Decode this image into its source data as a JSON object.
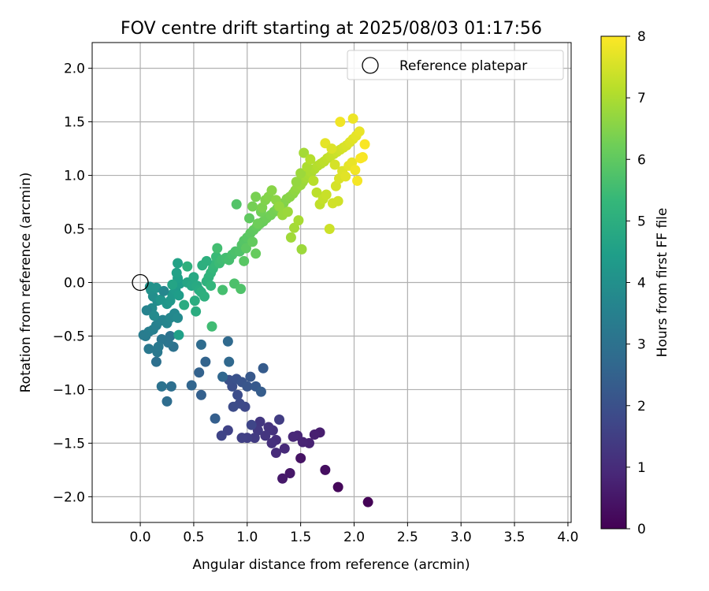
{
  "chart_data": {
    "type": "scatter",
    "title": "FOV centre drift starting at 2025/08/03 01:17:56",
    "xlabel": "Angular distance from reference (arcmin)",
    "ylabel": "Rotation from reference (arcmin)",
    "xlim": [
      -0.45,
      4.03
    ],
    "ylim": [
      -2.24,
      2.24
    ],
    "x_ticks": [
      0.0,
      0.5,
      1.0,
      1.5,
      2.0,
      2.5,
      3.0,
      3.5,
      4.0
    ],
    "x_tick_labels": [
      "0.0",
      "0.5",
      "1.0",
      "1.5",
      "2.0",
      "2.5",
      "3.0",
      "3.5",
      "4.0"
    ],
    "y_ticks": [
      -2.0,
      -1.5,
      -1.0,
      -0.5,
      0.0,
      0.5,
      1.0,
      1.5,
      2.0
    ],
    "y_tick_labels": [
      "−2.0",
      "−1.5",
      "−1.0",
      "−0.5",
      "0.0",
      "0.5",
      "1.0",
      "1.5",
      "2.0"
    ],
    "grid": true,
    "legend": {
      "position": "top-right",
      "entries": [
        "Reference platepar"
      ]
    },
    "reference_point": {
      "x": 0.0,
      "y": 0.0
    },
    "colorbar": {
      "label": "Hours from first FF file",
      "range": [
        0,
        8
      ],
      "ticks": [
        0,
        1,
        2,
        3,
        4,
        5,
        6,
        7,
        8
      ],
      "tick_labels": [
        "0",
        "1",
        "2",
        "3",
        "4",
        "5",
        "6",
        "7",
        "8"
      ],
      "colormap": [
        "#440154",
        "#482878",
        "#3e4989",
        "#31688e",
        "#26828e",
        "#1f9e89",
        "#35b779",
        "#6ece58",
        "#b5de2b",
        "#fde725"
      ]
    },
    "points": [
      [
        2.13,
        -2.05,
        0.05
      ],
      [
        1.85,
        -1.91,
        0.15
      ],
      [
        1.73,
        -1.75,
        0.3
      ],
      [
        1.5,
        -1.64,
        0.4
      ],
      [
        1.4,
        -1.78,
        0.5
      ],
      [
        1.33,
        -1.83,
        0.55
      ],
      [
        1.68,
        -1.4,
        0.65
      ],
      [
        1.63,
        -1.42,
        0.7
      ],
      [
        1.58,
        -1.5,
        0.75
      ],
      [
        1.52,
        -1.49,
        0.8
      ],
      [
        1.47,
        -1.43,
        0.85
      ],
      [
        1.43,
        -1.44,
        0.9
      ],
      [
        1.35,
        -1.55,
        0.95
      ],
      [
        1.27,
        -1.59,
        1.0
      ],
      [
        1.27,
        -1.47,
        1.05
      ],
      [
        1.23,
        -1.5,
        1.1
      ],
      [
        1.24,
        -1.38,
        1.15
      ],
      [
        1.2,
        -1.35,
        1.2
      ],
      [
        1.17,
        -1.43,
        1.25
      ],
      [
        1.12,
        -1.3,
        1.3
      ],
      [
        1.1,
        -1.38,
        1.35
      ],
      [
        1.07,
        -1.45,
        1.4
      ],
      [
        1.3,
        -1.28,
        1.45
      ],
      [
        1.0,
        -1.45,
        1.5
      ],
      [
        0.95,
        -1.45,
        1.55
      ],
      [
        0.82,
        -1.38,
        1.6
      ],
      [
        0.76,
        -1.43,
        1.65
      ],
      [
        1.04,
        -1.33,
        1.7
      ],
      [
        0.98,
        -1.16,
        1.75
      ],
      [
        0.93,
        -1.13,
        1.8
      ],
      [
        0.87,
        -1.16,
        1.85
      ],
      [
        0.91,
        -1.05,
        1.9
      ],
      [
        0.86,
        -0.97,
        1.95
      ],
      [
        0.83,
        -0.91,
        2.0
      ],
      [
        0.9,
        -0.9,
        2.05
      ],
      [
        0.95,
        -0.93,
        2.1
      ],
      [
        1.0,
        -0.97,
        2.15
      ],
      [
        1.03,
        -0.88,
        2.2
      ],
      [
        1.08,
        -0.97,
        2.25
      ],
      [
        1.15,
        -0.8,
        2.3
      ],
      [
        1.13,
        -1.02,
        2.35
      ],
      [
        0.7,
        -1.27,
        2.4
      ],
      [
        0.57,
        -1.05,
        2.45
      ],
      [
        0.55,
        -0.84,
        2.5
      ],
      [
        0.61,
        -0.74,
        2.55
      ],
      [
        0.48,
        -0.96,
        2.6
      ],
      [
        0.77,
        -0.88,
        2.65
      ],
      [
        0.83,
        -0.74,
        2.7
      ],
      [
        0.82,
        -0.55,
        2.75
      ],
      [
        0.57,
        -0.58,
        2.8
      ],
      [
        0.25,
        -1.11,
        2.85
      ],
      [
        0.29,
        -0.97,
        2.9
      ],
      [
        0.15,
        -0.74,
        2.95
      ],
      [
        0.31,
        -0.6,
        3.0
      ],
      [
        0.28,
        -0.5,
        3.05
      ],
      [
        0.26,
        -0.56,
        3.1
      ],
      [
        0.2,
        -0.53,
        3.15
      ],
      [
        0.16,
        -0.65,
        3.2
      ],
      [
        0.17,
        -0.6,
        3.25
      ],
      [
        0.05,
        -0.5,
        3.3
      ],
      [
        0.03,
        -0.49,
        3.35
      ],
      [
        0.08,
        -0.46,
        3.4
      ],
      [
        0.12,
        -0.44,
        3.45
      ],
      [
        0.15,
        -0.4,
        3.5
      ],
      [
        0.18,
        -0.36,
        3.55
      ],
      [
        0.21,
        -0.35,
        3.6
      ],
      [
        0.25,
        -0.38,
        3.65
      ],
      [
        0.28,
        -0.33,
        3.7
      ],
      [
        0.32,
        -0.29,
        3.75
      ],
      [
        0.35,
        -0.33,
        3.8
      ],
      [
        0.11,
        -0.24,
        3.85
      ],
      [
        0.16,
        -0.17,
        3.9
      ],
      [
        0.12,
        -0.13,
        3.95
      ],
      [
        0.1,
        -0.07,
        4.0
      ],
      [
        0.09,
        -0.04,
        4.05
      ],
      [
        0.15,
        -0.05,
        4.1
      ],
      [
        0.19,
        -0.16,
        4.15
      ],
      [
        0.25,
        -0.2,
        4.2
      ],
      [
        0.28,
        -0.17,
        4.25
      ],
      [
        0.3,
        -0.11,
        4.3
      ],
      [
        0.33,
        -0.07,
        4.35
      ],
      [
        0.36,
        -0.12,
        4.4
      ],
      [
        0.37,
        -0.01,
        4.45
      ],
      [
        0.35,
        0.04,
        4.5
      ],
      [
        0.34,
        0.09,
        4.55
      ],
      [
        0.35,
        0.18,
        4.6
      ],
      [
        0.3,
        -0.02,
        4.65
      ],
      [
        0.44,
        0.0,
        4.7
      ],
      [
        0.48,
        -0.03,
        4.75
      ],
      [
        0.5,
        0.05,
        4.8
      ],
      [
        0.53,
        -0.03,
        4.85
      ],
      [
        0.55,
        -0.07,
        4.9
      ],
      [
        0.51,
        -0.17,
        4.95
      ],
      [
        0.57,
        -0.09,
        5.0
      ],
      [
        0.6,
        -0.13,
        5.05
      ],
      [
        0.62,
        0.01,
        5.1
      ],
      [
        0.64,
        0.05,
        5.15
      ],
      [
        0.66,
        0.09,
        5.2
      ],
      [
        0.66,
        -0.03,
        5.25
      ],
      [
        0.68,
        0.13,
        5.3
      ],
      [
        0.7,
        0.17,
        5.35
      ],
      [
        0.71,
        0.24,
        5.4
      ],
      [
        0.74,
        0.18,
        5.45
      ],
      [
        0.76,
        0.21,
        5.5
      ],
      [
        0.8,
        0.23,
        5.55
      ],
      [
        0.83,
        0.21,
        5.6
      ],
      [
        0.86,
        0.26,
        5.65
      ],
      [
        0.89,
        0.29,
        5.7
      ],
      [
        0.93,
        0.29,
        5.75
      ],
      [
        0.95,
        0.35,
        5.8
      ],
      [
        0.97,
        0.39,
        5.85
      ],
      [
        1.0,
        0.42,
        5.9
      ],
      [
        1.03,
        0.46,
        5.95
      ],
      [
        1.06,
        0.49,
        6.0
      ],
      [
        1.09,
        0.52,
        6.05
      ],
      [
        1.12,
        0.55,
        6.1
      ],
      [
        1.15,
        0.57,
        6.15
      ],
      [
        1.18,
        0.6,
        6.2
      ],
      [
        1.22,
        0.63,
        6.25
      ],
      [
        1.25,
        0.66,
        6.3
      ],
      [
        1.28,
        0.69,
        6.35
      ],
      [
        1.31,
        0.72,
        6.4
      ],
      [
        1.34,
        0.74,
        6.45
      ],
      [
        1.37,
        0.78,
        6.5
      ],
      [
        1.4,
        0.8,
        6.55
      ],
      [
        1.43,
        0.83,
        6.6
      ],
      [
        1.45,
        0.86,
        6.65
      ],
      [
        1.47,
        0.89,
        6.7
      ],
      [
        1.5,
        0.91,
        6.75
      ],
      [
        1.52,
        0.94,
        6.8
      ],
      [
        1.54,
        0.97,
        6.85
      ],
      [
        1.56,
        0.98,
        6.9
      ],
      [
        1.58,
        1.01,
        6.95
      ],
      [
        1.6,
        1.03,
        7.0
      ],
      [
        1.63,
        1.06,
        7.05
      ],
      [
        1.66,
        1.09,
        7.1
      ],
      [
        1.69,
        1.11,
        7.15
      ],
      [
        1.72,
        1.13,
        7.2
      ],
      [
        1.75,
        1.16,
        7.25
      ],
      [
        1.78,
        1.18,
        7.3
      ],
      [
        1.81,
        1.2,
        7.35
      ],
      [
        1.84,
        1.22,
        7.4
      ],
      [
        1.87,
        1.24,
        7.45
      ],
      [
        1.9,
        1.26,
        7.5
      ],
      [
        1.93,
        1.28,
        7.55
      ],
      [
        1.96,
        1.31,
        7.6
      ],
      [
        1.99,
        1.34,
        7.65
      ],
      [
        2.02,
        1.37,
        7.7
      ],
      [
        2.05,
        1.41,
        7.75
      ],
      [
        1.99,
        1.53,
        7.8
      ],
      [
        1.87,
        1.5,
        7.85
      ],
      [
        2.08,
        1.17,
        7.9
      ],
      [
        2.1,
        1.29,
        7.95
      ],
      [
        0.97,
        0.2,
        5.9
      ],
      [
        0.99,
        0.32,
        5.95
      ],
      [
        1.02,
        0.6,
        6.0
      ],
      [
        1.05,
        0.38,
        6.05
      ],
      [
        1.08,
        0.27,
        6.1
      ],
      [
        1.1,
        0.55,
        6.2
      ],
      [
        1.13,
        0.66,
        6.25
      ],
      [
        1.05,
        0.71,
        6.3
      ],
      [
        1.08,
        0.8,
        6.35
      ],
      [
        1.14,
        0.7,
        6.4
      ],
      [
        1.17,
        0.77,
        6.45
      ],
      [
        1.2,
        0.8,
        6.5
      ],
      [
        1.23,
        0.86,
        6.55
      ],
      [
        1.27,
        0.77,
        6.6
      ],
      [
        1.3,
        0.71,
        6.7
      ],
      [
        1.33,
        0.63,
        6.75
      ],
      [
        1.38,
        0.66,
        6.8
      ],
      [
        1.41,
        0.42,
        6.85
      ],
      [
        1.44,
        0.51,
        6.9
      ],
      [
        1.48,
        0.58,
        6.95
      ],
      [
        1.51,
        0.31,
        6.8
      ],
      [
        1.46,
        0.94,
        6.7
      ],
      [
        1.5,
        1.02,
        6.8
      ],
      [
        1.53,
        1.21,
        6.9
      ],
      [
        1.56,
        1.08,
        7.0
      ],
      [
        1.59,
        1.15,
        7.1
      ],
      [
        1.62,
        0.95,
        7.15
      ],
      [
        1.65,
        0.84,
        7.2
      ],
      [
        1.68,
        0.73,
        7.25
      ],
      [
        1.71,
        0.78,
        7.3
      ],
      [
        1.74,
        0.82,
        7.35
      ],
      [
        1.77,
        0.5,
        7.4
      ],
      [
        1.8,
        0.74,
        7.45
      ],
      [
        1.83,
        0.9,
        7.5
      ],
      [
        1.86,
        0.97,
        7.55
      ],
      [
        1.89,
        1.04,
        7.6
      ],
      [
        1.92,
        0.99,
        7.65
      ],
      [
        1.95,
        1.09,
        7.7
      ],
      [
        1.98,
        1.12,
        7.75
      ],
      [
        2.01,
        1.05,
        7.85
      ],
      [
        2.03,
        0.95,
        7.9
      ],
      [
        2.06,
        1.16,
        7.95
      ],
      [
        1.73,
        1.3,
        7.7
      ],
      [
        1.79,
        1.25,
        7.6
      ],
      [
        1.82,
        1.1,
        7.5
      ],
      [
        1.85,
        0.76,
        7.45
      ],
      [
        0.9,
        0.73,
        5.8
      ],
      [
        0.67,
        -0.41,
        5.5
      ],
      [
        0.77,
        -0.07,
        5.6
      ],
      [
        0.88,
        -0.01,
        5.7
      ],
      [
        0.94,
        -0.06,
        5.75
      ],
      [
        0.58,
        0.16,
        5.0
      ],
      [
        0.62,
        0.2,
        5.05
      ],
      [
        0.44,
        0.15,
        5.1
      ],
      [
        0.72,
        0.32,
        5.55
      ],
      [
        0.41,
        -0.21,
        4.9
      ],
      [
        0.52,
        -0.27,
        4.95
      ],
      [
        0.36,
        -0.49,
        4.5
      ],
      [
        0.08,
        -0.62,
        3.2
      ],
      [
        0.2,
        -0.97,
        3.0
      ],
      [
        0.06,
        -0.26,
        3.6
      ],
      [
        0.22,
        -0.08,
        3.7
      ],
      [
        0.13,
        -0.31,
        3.8
      ]
    ]
  }
}
